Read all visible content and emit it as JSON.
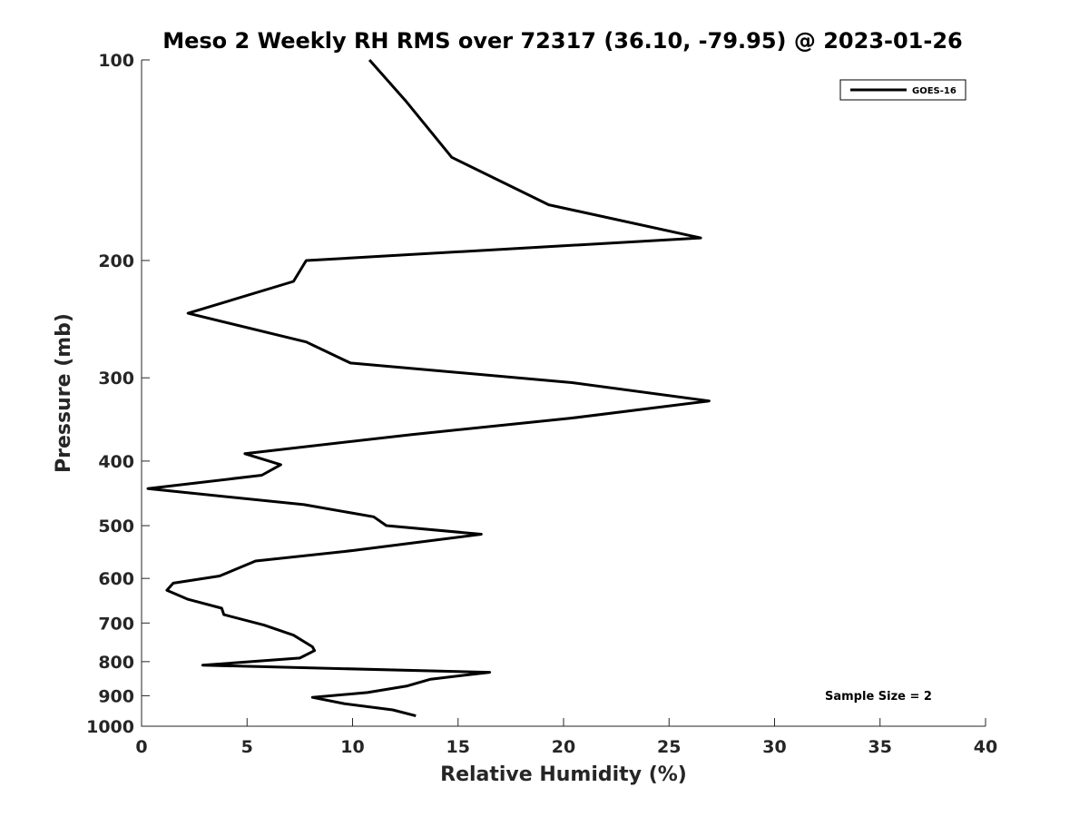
{
  "chart_data": {
    "type": "line",
    "title": "Meso 2 Weekly RH RMS over 72317 (36.10, -79.95) @ 2023-01-26",
    "xlabel": "Relative Humidity (%)",
    "ylabel": "Pressure (mb)",
    "xlim": [
      0,
      40
    ],
    "ylim": [
      100,
      1000
    ],
    "y_scale": "log",
    "y_reversed": true,
    "grid": false,
    "legend_position": "top-right",
    "x_ticks": [
      0,
      5,
      10,
      15,
      20,
      25,
      30,
      35,
      40
    ],
    "x_tick_labels": [
      "0",
      "5",
      "10",
      "15",
      "20",
      "25",
      "30",
      "35",
      "40"
    ],
    "y_ticks": [
      100,
      200,
      300,
      400,
      500,
      600,
      700,
      800,
      900,
      1000
    ],
    "y_tick_labels": [
      "100",
      "200",
      "300",
      "400",
      "500",
      "600",
      "700",
      "800",
      "900",
      "1000"
    ],
    "series": [
      {
        "name": "GOES-16",
        "color": "#000000",
        "x": [
          10.8,
          12.5,
          14.7,
          19.3,
          26.5,
          7.8,
          7.2,
          2.2,
          7.8,
          9.9,
          20.4,
          26.9,
          20.3,
          12.8,
          4.9,
          6.6,
          5.7,
          0.3,
          7.7,
          11.0,
          11.6,
          16.1,
          10.0,
          5.4,
          3.7,
          1.5,
          1.2,
          2.2,
          3.8,
          3.9,
          5.8,
          7.2,
          8.1,
          8.2,
          7.5,
          2.9,
          16.5,
          13.7,
          12.6,
          10.7,
          8.1,
          9.6,
          11.9,
          13.0
        ],
        "y": [
          100,
          115,
          140,
          165,
          185,
          200,
          215,
          240,
          265,
          285,
          305,
          325,
          345,
          365,
          390,
          405,
          420,
          440,
          465,
          485,
          500,
          515,
          545,
          565,
          595,
          610,
          625,
          645,
          665,
          680,
          705,
          730,
          760,
          770,
          790,
          810,
          830,
          850,
          870,
          890,
          905,
          925,
          945,
          965
        ]
      }
    ],
    "annotations": [
      "Sample Size = 2"
    ]
  },
  "colors": {
    "axis": "#262626",
    "line": "#000000",
    "background": "#ffffff"
  }
}
